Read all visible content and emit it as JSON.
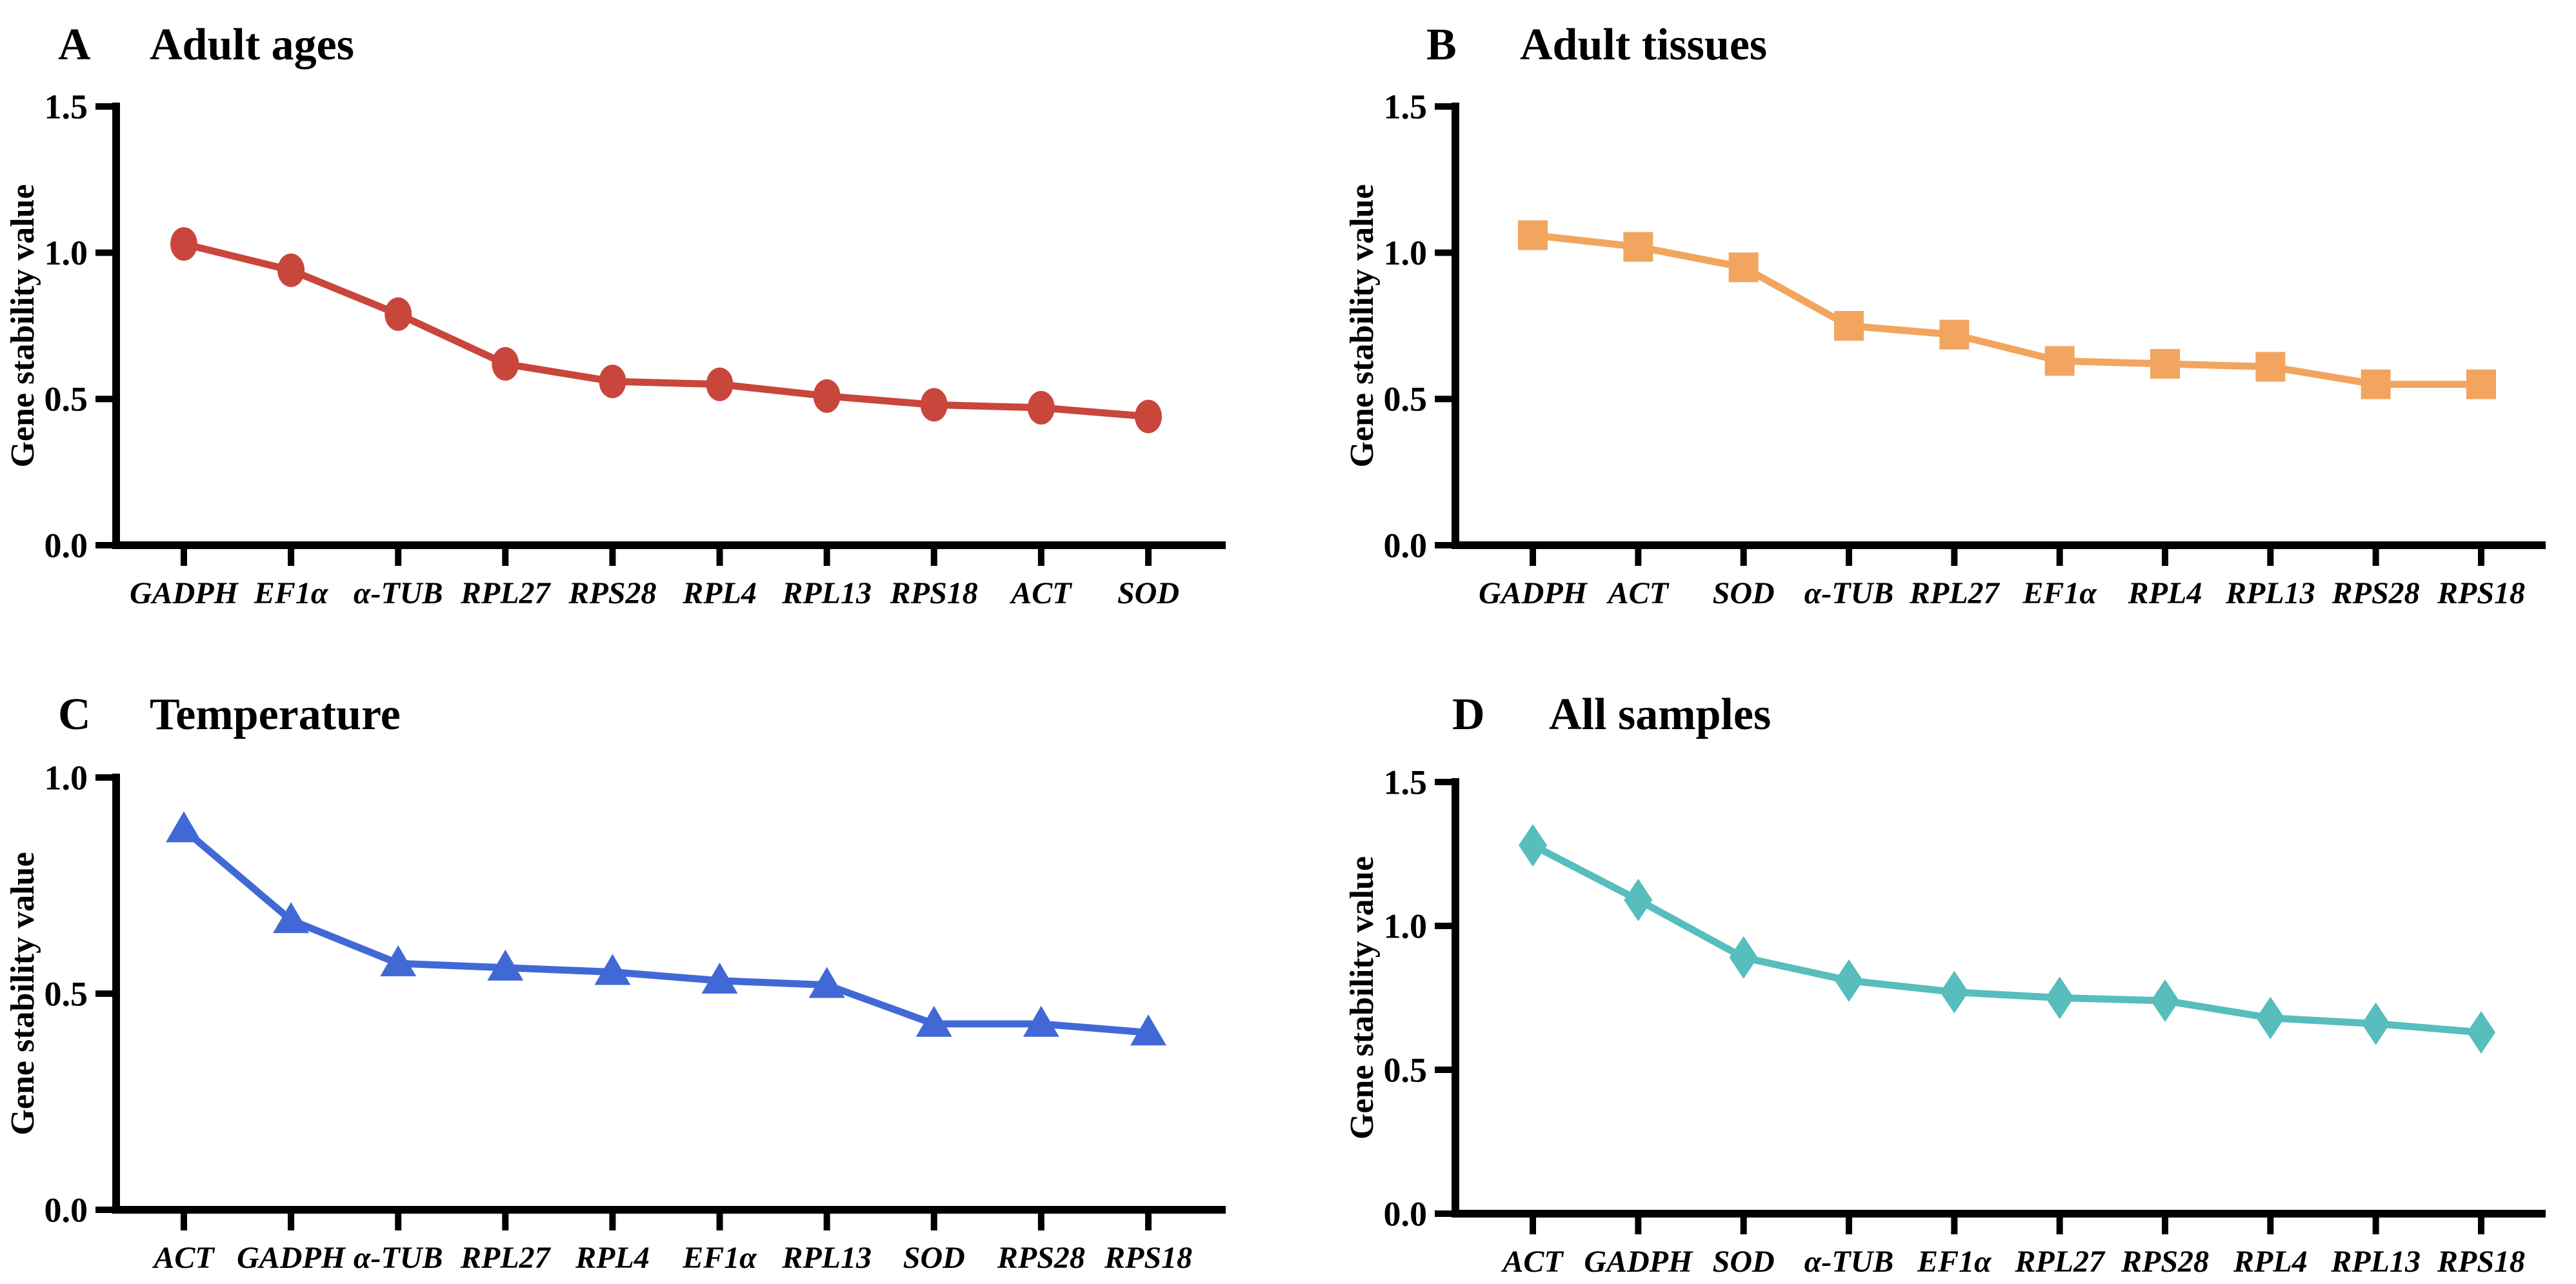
{
  "figure": {
    "background": "#ffffff",
    "axis_color": "#000000",
    "text_color": "#000000"
  },
  "chart_data": [
    {
      "panel_label": "A",
      "title": "Adult ages",
      "type": "line",
      "marker": "circle",
      "color": "#c9463c",
      "ylabel": "Gene stability value",
      "ylim": [
        0,
        1.5
      ],
      "yticks": [
        0.0,
        0.5,
        1.0,
        1.5
      ],
      "ytick_labels": [
        "0.0",
        "0.5",
        "1.0",
        "1.5"
      ],
      "grid": false,
      "legend": "none",
      "categories": [
        "GADPH",
        "EF1α",
        "α-TUB",
        "RPL27",
        "RPS28",
        "RPL4",
        "RPL13",
        "RPS18",
        "ACT",
        "SOD"
      ],
      "values": [
        1.03,
        0.94,
        0.79,
        0.62,
        0.56,
        0.55,
        0.51,
        0.48,
        0.47,
        0.44
      ]
    },
    {
      "panel_label": "B",
      "title": "Adult tissues",
      "type": "line",
      "marker": "square",
      "color": "#f2a55e",
      "ylabel": "Gene stability value",
      "ylim": [
        0,
        1.5
      ],
      "yticks": [
        0.0,
        0.5,
        1.0,
        1.5
      ],
      "ytick_labels": [
        "0.0",
        "0.5",
        "1.0",
        "1.5"
      ],
      "grid": false,
      "legend": "none",
      "categories": [
        "GADPH",
        "ACT",
        "SOD",
        "α-TUB",
        "RPL27",
        "EF1α",
        "RPL4",
        "RPL13",
        "RPS28",
        "RPS18"
      ],
      "values": [
        1.06,
        1.02,
        0.95,
        0.75,
        0.72,
        0.63,
        0.62,
        0.61,
        0.55,
        0.55
      ]
    },
    {
      "panel_label": "C",
      "title": "Temperature",
      "type": "line",
      "marker": "triangle",
      "color": "#4169d6",
      "ylabel": "Gene stability value",
      "ylim": [
        0,
        1.0
      ],
      "yticks": [
        0.0,
        0.5,
        1.0
      ],
      "ytick_labels": [
        "0.0",
        "0.5",
        "1.0"
      ],
      "grid": false,
      "legend": "none",
      "categories": [
        "ACT",
        "GADPH",
        "α-TUB",
        "RPL27",
        "RPL4",
        "EF1α",
        "RPL13",
        "SOD",
        "RPS28",
        "RPS18"
      ],
      "values": [
        0.88,
        0.67,
        0.57,
        0.56,
        0.55,
        0.53,
        0.52,
        0.43,
        0.43,
        0.41
      ]
    },
    {
      "panel_label": "D",
      "title": "All samples",
      "type": "line",
      "marker": "diamond",
      "color": "#57bdbd",
      "ylabel": "Gene stability value",
      "ylim": [
        0,
        1.5
      ],
      "yticks": [
        0.0,
        0.5,
        1.0,
        1.5
      ],
      "ytick_labels": [
        "0.0",
        "0.5",
        "1.0",
        "1.5"
      ],
      "grid": false,
      "legend": "none",
      "categories": [
        "ACT",
        "GADPH",
        "SOD",
        "α-TUB",
        "EF1α",
        "RPL27",
        "RPS28",
        "RPL4",
        "RPL13",
        "RPS18"
      ],
      "values": [
        1.28,
        1.09,
        0.89,
        0.81,
        0.77,
        0.75,
        0.74,
        0.68,
        0.66,
        0.63
      ]
    }
  ]
}
